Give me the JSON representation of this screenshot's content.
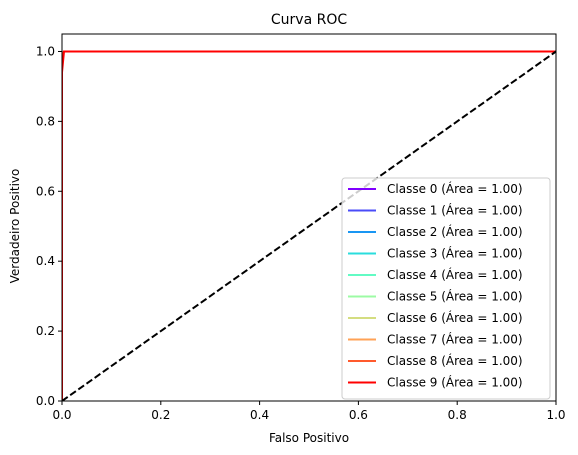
{
  "chart_data": {
    "type": "line",
    "title": "Curva ROC",
    "xlabel": "Falso Positivo",
    "ylabel": "Verdadeiro Positivo",
    "xlim": [
      0.0,
      1.0
    ],
    "ylim": [
      0.0,
      1.05
    ],
    "xticks": [
      "0.0",
      "0.2",
      "0.4",
      "0.6",
      "0.8",
      "1.0"
    ],
    "yticks": [
      "0.0",
      "0.2",
      "0.4",
      "0.6",
      "0.8",
      "1.0"
    ],
    "grid": false,
    "legend_position": "lower-right",
    "reference_line": {
      "x": [
        0,
        1
      ],
      "y": [
        0,
        1
      ],
      "color": "#000000",
      "style": "dashed"
    },
    "series": [
      {
        "name": "Classe 0 (Área = 1.00)",
        "color": "#8000ff",
        "x": [
          0,
          0,
          0.004,
          1
        ],
        "y": [
          0,
          0.99,
          1,
          1
        ]
      },
      {
        "name": "Classe 1 (Área = 1.00)",
        "color": "#4a4cf8",
        "x": [
          0,
          0,
          0.004,
          1
        ],
        "y": [
          0,
          0.99,
          1,
          1
        ]
      },
      {
        "name": "Classe 2 (Área = 1.00)",
        "color": "#1996f3",
        "x": [
          0,
          0,
          0.004,
          1
        ],
        "y": [
          0,
          0.99,
          1,
          1
        ]
      },
      {
        "name": "Classe 3 (Área = 1.00)",
        "color": "#2adddd",
        "x": [
          0,
          0,
          0.004,
          1
        ],
        "y": [
          0,
          0.99,
          1,
          1
        ]
      },
      {
        "name": "Classe 4 (Área = 1.00)",
        "color": "#62fbc4",
        "x": [
          0,
          0,
          0.004,
          1
        ],
        "y": [
          0,
          0.99,
          1,
          1
        ]
      },
      {
        "name": "Classe 5 (Área = 1.00)",
        "color": "#9cfba4",
        "x": [
          0,
          0,
          0.004,
          1
        ],
        "y": [
          0,
          0.99,
          1,
          1
        ]
      },
      {
        "name": "Classe 6 (Área = 1.00)",
        "color": "#d4dd80",
        "x": [
          0,
          0,
          0.004,
          1
        ],
        "y": [
          0,
          0.99,
          1,
          1
        ]
      },
      {
        "name": "Classe 7 (Área = 1.00)",
        "color": "#ffa256",
        "x": [
          0,
          0,
          0.004,
          1
        ],
        "y": [
          0,
          0.99,
          1,
          1
        ]
      },
      {
        "name": "Classe 8 (Área = 1.00)",
        "color": "#ff5a2d",
        "x": [
          0,
          0,
          0.004,
          1
        ],
        "y": [
          0,
          0.99,
          1,
          1
        ]
      },
      {
        "name": "Classe 9 (Área = 1.00)",
        "color": "#ff0000",
        "x": [
          0,
          0,
          0.004,
          1
        ],
        "y": [
          0,
          0.94,
          1,
          1
        ]
      }
    ]
  }
}
